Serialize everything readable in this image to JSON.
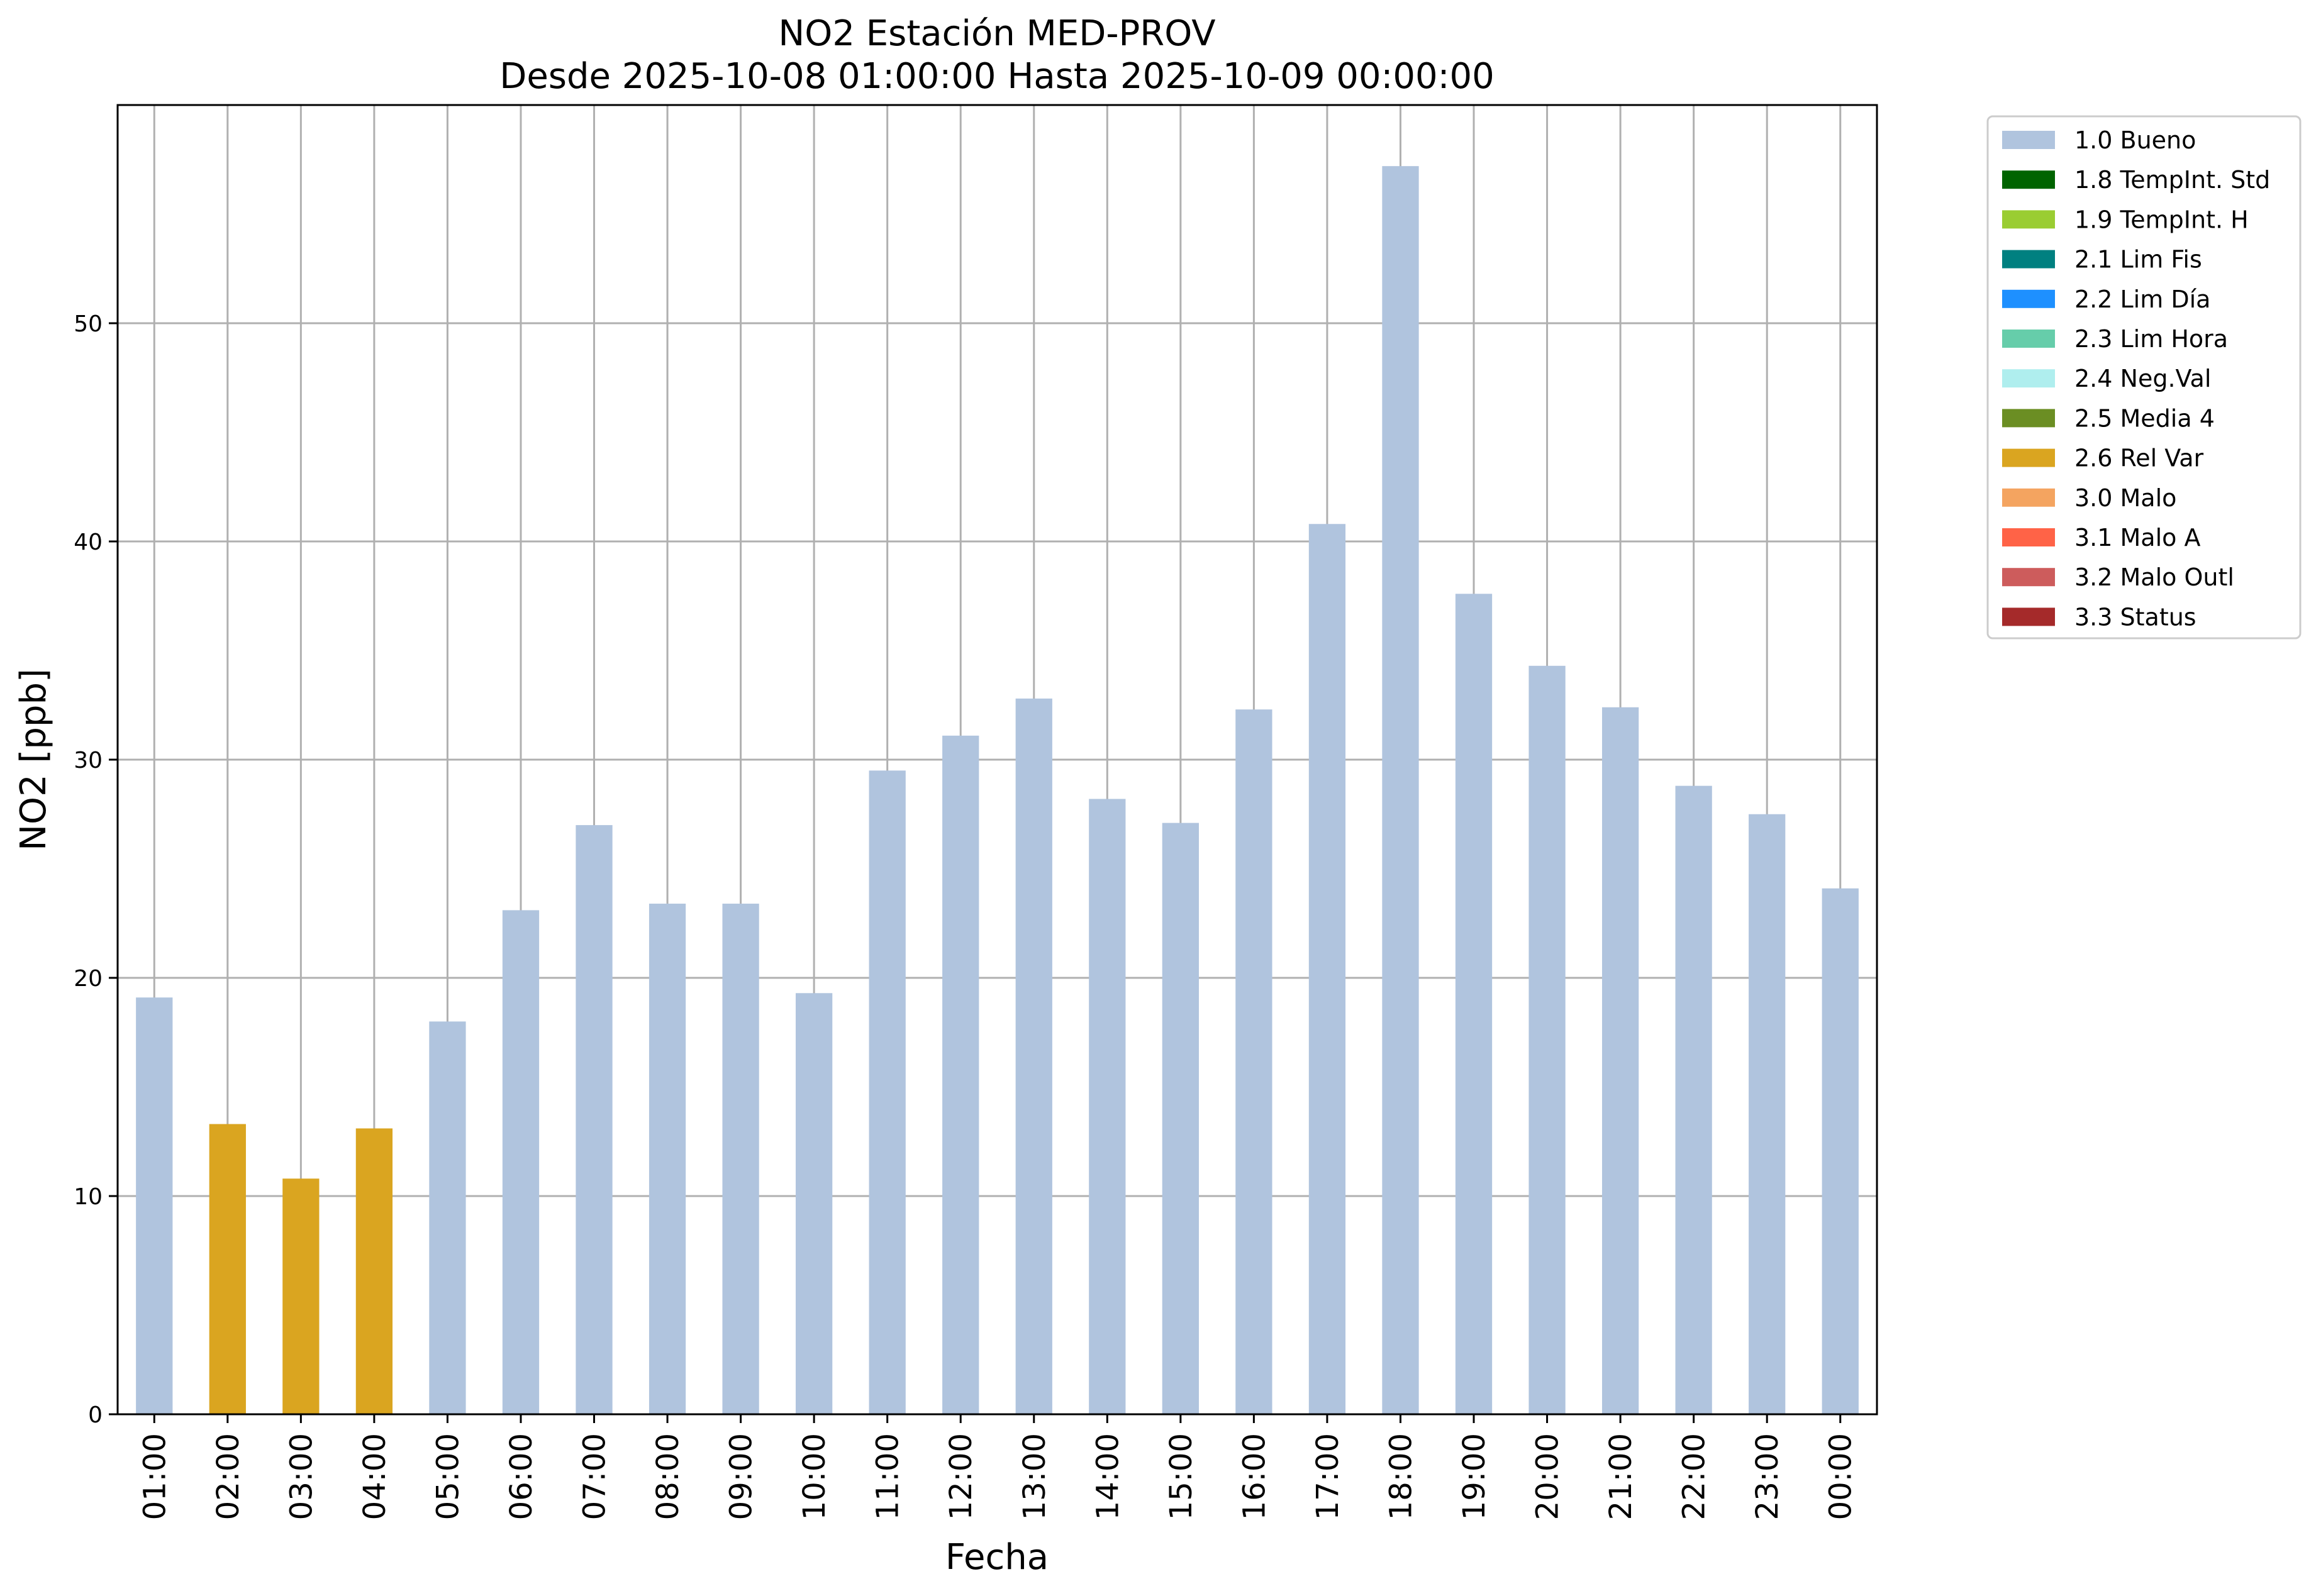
{
  "chart_data": {
    "type": "bar",
    "title": "NO2 Estación MED-PROV",
    "subtitle": "Desde 2025-10-08 01:00:00 Hasta 2025-10-09 00:00:00",
    "xlabel": "Fecha",
    "ylabel": "NO2 [ppb]",
    "ylim": [
      0,
      60
    ],
    "yticks": [
      "0",
      "10",
      "20",
      "30",
      "40",
      "50"
    ],
    "grid": true,
    "legend_position": "outside-top-right",
    "categories": [
      "01:00",
      "02:00",
      "03:00",
      "04:00",
      "05:00",
      "06:00",
      "07:00",
      "08:00",
      "09:00",
      "10:00",
      "11:00",
      "12:00",
      "13:00",
      "14:00",
      "15:00",
      "16:00",
      "17:00",
      "18:00",
      "19:00",
      "20:00",
      "21:00",
      "22:00",
      "23:00",
      "00:00"
    ],
    "values": [
      19.1,
      13.3,
      10.8,
      13.1,
      18.0,
      23.1,
      27.0,
      23.4,
      23.4,
      19.3,
      29.5,
      31.1,
      32.8,
      28.2,
      27.1,
      32.3,
      40.8,
      57.2,
      37.6,
      34.3,
      32.4,
      28.8,
      27.5,
      24.1
    ],
    "flags": [
      "1.0 Bueno",
      "2.6 Rel Var",
      "2.6 Rel Var",
      "2.6 Rel Var",
      "1.0 Bueno",
      "1.0 Bueno",
      "1.0 Bueno",
      "1.0 Bueno",
      "1.0 Bueno",
      "1.0 Bueno",
      "1.0 Bueno",
      "1.0 Bueno",
      "1.0 Bueno",
      "1.0 Bueno",
      "1.0 Bueno",
      "1.0 Bueno",
      "1.0 Bueno",
      "1.0 Bueno",
      "1.0 Bueno",
      "1.0 Bueno",
      "1.0 Bueno",
      "1.0 Bueno",
      "1.0 Bueno",
      "1.0 Bueno"
    ],
    "legend": [
      {
        "label": "1.0 Bueno",
        "color": "#b0c4de"
      },
      {
        "label": "1.8 TempInt. Std",
        "color": "#006400"
      },
      {
        "label": "1.9 TempInt. H",
        "color": "#9acd32"
      },
      {
        "label": "2.1 Lim Fis",
        "color": "#008080"
      },
      {
        "label": "2.2 Lim Día",
        "color": "#1e90ff"
      },
      {
        "label": "2.3 Lim Hora",
        "color": "#66cdaa"
      },
      {
        "label": "2.4 Neg.Val",
        "color": "#afeeee"
      },
      {
        "label": "2.5 Media 4",
        "color": "#6b8e23"
      },
      {
        "label": "2.6 Rel Var",
        "color": "#daa520"
      },
      {
        "label": "3.0 Malo",
        "color": "#f4a460"
      },
      {
        "label": "3.1 Malo A",
        "color": "#ff6347"
      },
      {
        "label": "3.2 Malo Outl",
        "color": "#cd5c5c"
      },
      {
        "label": "3.3 Status",
        "color": "#a52a2a"
      }
    ]
  }
}
